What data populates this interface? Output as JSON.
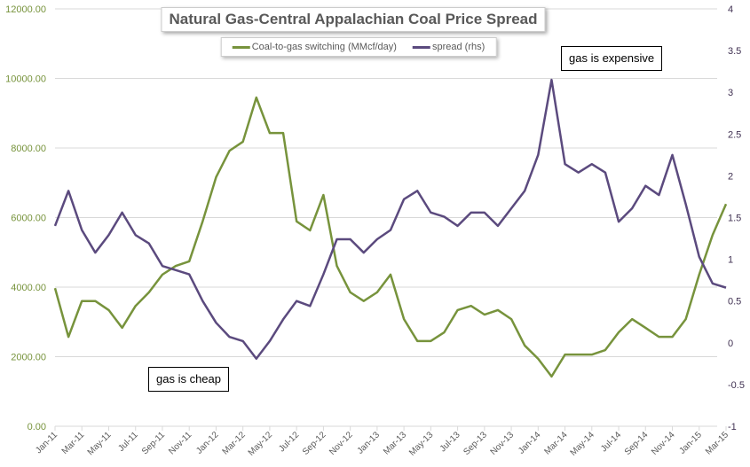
{
  "chart_data": {
    "type": "line",
    "title": "Natural Gas-Central Appalachian Coal Price Spread",
    "x_tick_labels": [
      "Jan-11",
      "Mar-11",
      "May-11",
      "Jul-11",
      "Sep-11",
      "Nov-11",
      "Jan-12",
      "Mar-12",
      "May-12",
      "Jul-12",
      "Sep-12",
      "Nov-12",
      "Jan-13",
      "Mar-13",
      "May-13",
      "Jul-13",
      "Sep-13",
      "Nov-13",
      "Jan-14",
      "Mar-14",
      "May-14",
      "Jul-14",
      "Sep-14",
      "Nov-14",
      "Jan-15",
      "Mar-15"
    ],
    "y_left": {
      "range": [
        0,
        12000
      ],
      "ticks": [
        "0.00",
        "2000.00",
        "4000.00",
        "6000.00",
        "8000.00",
        "10000.00",
        "12000.00"
      ],
      "color": "#77933C"
    },
    "y_right": {
      "range": [
        -1,
        4
      ],
      "ticks": [
        "-1",
        "-0.5",
        "0",
        "0.5",
        "1",
        "1.5",
        "2",
        "2.5",
        "3",
        "3.5",
        "4"
      ],
      "color": "#403152"
    },
    "grid": true,
    "legend_placement": "top-center",
    "x": [
      "2011-01",
      "2011-02",
      "2011-03",
      "2011-04",
      "2011-05",
      "2011-06",
      "2011-07",
      "2011-08",
      "2011-09",
      "2011-10",
      "2011-11",
      "2011-12",
      "2012-01",
      "2012-02",
      "2012-03",
      "2012-04",
      "2012-05",
      "2012-06",
      "2012-07",
      "2012-08",
      "2012-09",
      "2012-10",
      "2012-11",
      "2012-12",
      "2013-01",
      "2013-02",
      "2013-03",
      "2013-04",
      "2013-05",
      "2013-06",
      "2013-07",
      "2013-08",
      "2013-09",
      "2013-10",
      "2013-11",
      "2013-12",
      "2014-01",
      "2014-02",
      "2014-03",
      "2014-04",
      "2014-05",
      "2014-06",
      "2014-07",
      "2014-08",
      "2014-09",
      "2014-10",
      "2014-11",
      "2014-12",
      "2015-01",
      "2015-02",
      "2015-03"
    ],
    "series": [
      {
        "name": "Coal-to-gas switching  (MMcf/day)",
        "axis": "left",
        "color": "#77933C",
        "values": [
          3970,
          2570,
          3600,
          3600,
          3340,
          2830,
          3460,
          3850,
          4360,
          4610,
          4740,
          5890,
          7160,
          7920,
          8180,
          9450,
          8430,
          8430,
          5890,
          5630,
          6650,
          4610,
          3850,
          3600,
          3850,
          4360,
          3080,
          2450,
          2450,
          2700,
          3340,
          3460,
          3210,
          3340,
          3080,
          2320,
          1940,
          1430,
          2060,
          2060,
          2060,
          2190,
          2700,
          3080,
          2830,
          2570,
          2570,
          3080,
          4360,
          5500,
          6390
        ]
      },
      {
        "name": "spread (rhs)",
        "axis": "right",
        "color": "#5B4A7E",
        "values": [
          1.4,
          1.82,
          1.35,
          1.08,
          1.29,
          1.56,
          1.29,
          1.19,
          0.92,
          0.87,
          0.82,
          0.5,
          0.24,
          0.07,
          0.02,
          -0.19,
          0.02,
          0.28,
          0.5,
          0.44,
          0.82,
          1.24,
          1.24,
          1.08,
          1.24,
          1.35,
          1.72,
          1.82,
          1.56,
          1.51,
          1.4,
          1.56,
          1.56,
          1.4,
          1.61,
          1.82,
          2.25,
          3.15,
          2.14,
          2.04,
          2.14,
          2.04,
          1.45,
          1.61,
          1.88,
          1.77,
          2.25,
          1.66,
          1.03,
          0.71,
          0.66
        ]
      }
    ],
    "annotations": [
      "gas is expensive",
      "gas is cheap"
    ]
  }
}
